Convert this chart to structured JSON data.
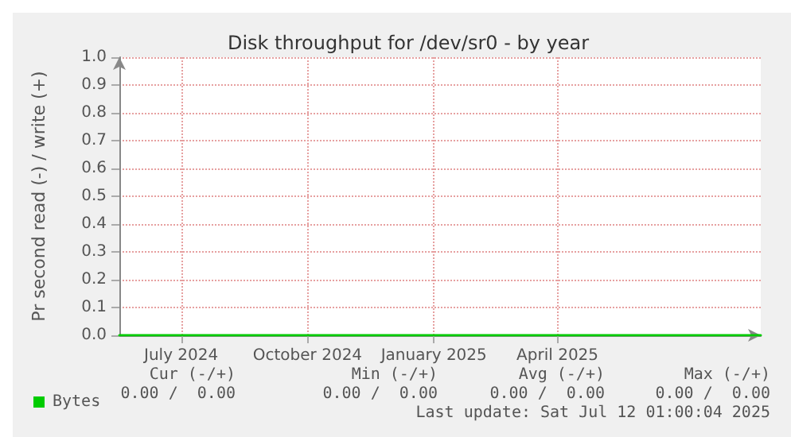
{
  "chart_data": {
    "type": "line",
    "title": "Disk throughput for /dev/sr0 - by year",
    "ylabel": "Pr second read (-) / write (+)",
    "xlim": [
      "2024-05-17",
      "2025-08-27"
    ],
    "xticks": [
      {
        "value": "2024-07-01",
        "label": "July 2024"
      },
      {
        "value": "2024-10-01",
        "label": "October 2024"
      },
      {
        "value": "2025-01-01",
        "label": "January 2025"
      },
      {
        "value": "2025-04-01",
        "label": "April 2025"
      }
    ],
    "ylim": [
      0,
      1
    ],
    "yticks": [
      {
        "value": 0,
        "label": "0.0"
      },
      0.1,
      0.2,
      0.3,
      0.4,
      0.5,
      0.6,
      0.7,
      0.8,
      0.9,
      {
        "value": 1,
        "label": "1.0"
      }
    ],
    "series": [
      {
        "name": "Bytes",
        "color": "#00cc00",
        "x": [
          "2024-05-17",
          "2025-08-27"
        ],
        "values": [
          0,
          0
        ]
      }
    ],
    "grid": true,
    "legend": "bottom left",
    "marker": "none",
    "line_style": "solid",
    "annotations": [
      "Cur (-/+)",
      "Min (-/+)",
      "Avg (-/+)",
      "Max (-/+)",
      "0.00 /  0.00",
      "0.00 /  0.00",
      "0.00 /  0.00",
      "0.00 /  0.00",
      "Last update: Sat Jul 12 01:00:04 2025"
    ]
  }
}
